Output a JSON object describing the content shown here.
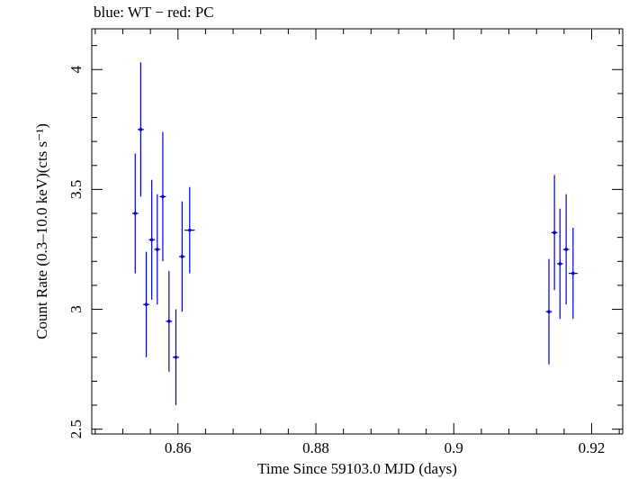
{
  "caption": "blue: WT − red: PC",
  "chart_data": {
    "type": "scatter",
    "title": "blue: WT − red: PC",
    "xlabel": "Time Since 59103.0 MJD (days)",
    "ylabel": "Count Rate (0.3–10.0 keV)(cts s⁻¹)",
    "xlim": [
      0.8475,
      0.9245
    ],
    "ylim": [
      2.48,
      4.17
    ],
    "xticks": [
      "0.86",
      "0.88",
      "0.9",
      "0.92"
    ],
    "yticks": [
      "2.5",
      "3",
      "3.5",
      "4"
    ],
    "grid": false,
    "series": [
      {
        "name": "WT",
        "color": "#0000cc",
        "points": [
          {
            "x": 0.8538,
            "y": 3.4,
            "yerr": 0.25,
            "xerr": 0.00045
          },
          {
            "x": 0.8546,
            "y": 3.75,
            "yerr": 0.28,
            "xerr": 0.00045
          },
          {
            "x": 0.8554,
            "y": 3.02,
            "yerr": 0.22,
            "xerr": 0.00045
          },
          {
            "x": 0.8562,
            "y": 3.29,
            "yerr": 0.25,
            "xerr": 0.00045
          },
          {
            "x": 0.857,
            "y": 3.25,
            "yerr": 0.23,
            "xerr": 0.00045
          },
          {
            "x": 0.8578,
            "y": 3.47,
            "yerr": 0.27,
            "xerr": 0.00045
          },
          {
            "x": 0.8587,
            "y": 2.95,
            "yerr": 0.21,
            "xerr": 0.00045
          },
          {
            "x": 0.8597,
            "y": 2.8,
            "yerr": 0.2,
            "xerr": 0.00045
          },
          {
            "x": 0.8606,
            "y": 3.22,
            "yerr": 0.23,
            "xerr": 0.00045
          },
          {
            "x": 0.8617,
            "y": 3.33,
            "yerr": 0.18,
            "xerr": 0.00075
          },
          {
            "x": 0.9138,
            "y": 2.99,
            "yerr": 0.22,
            "xerr": 0.00045
          },
          {
            "x": 0.9146,
            "y": 3.32,
            "yerr": 0.24,
            "xerr": 0.00045
          },
          {
            "x": 0.9154,
            "y": 3.19,
            "yerr": 0.23,
            "xerr": 0.00045
          },
          {
            "x": 0.9163,
            "y": 3.25,
            "yerr": 0.23,
            "xerr": 0.00045
          },
          {
            "x": 0.9173,
            "y": 3.15,
            "yerr": 0.19,
            "xerr": 0.00065
          }
        ]
      }
    ]
  }
}
